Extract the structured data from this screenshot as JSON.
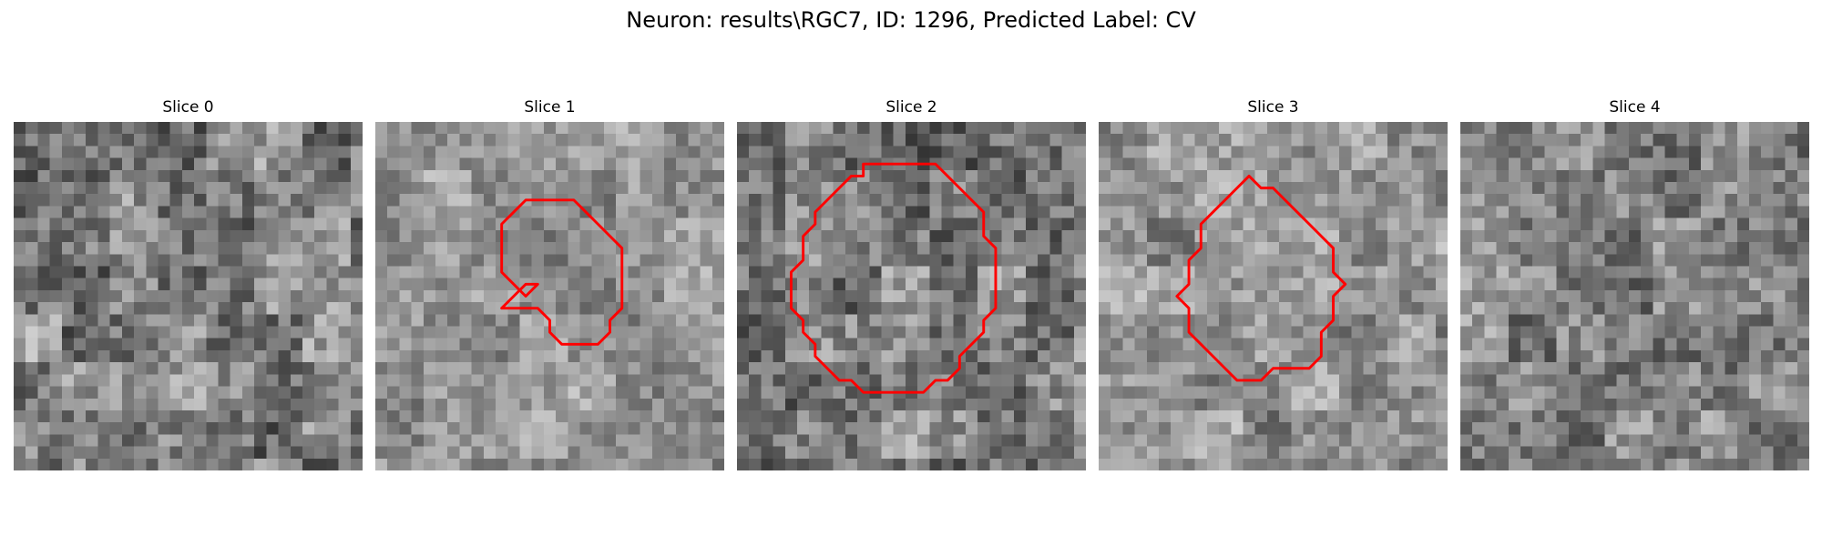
{
  "figure": {
    "suptitle": "Neuron: results\\RGC7, ID: 1296, Predicted Label: CV"
  },
  "panels": [
    {
      "title": "Slice 0",
      "mean": 128,
      "contrast": 58,
      "seed": 11,
      "contour": []
    },
    {
      "title": "Slice 1",
      "mean": 150,
      "contrast": 40,
      "seed": 23,
      "contour": [
        [
          12.5,
          6.5
        ],
        [
          11.5,
          7.5
        ],
        [
          10.5,
          8.5
        ],
        [
          10.5,
          12.5
        ],
        [
          11.5,
          13.5
        ],
        [
          12.5,
          14.5
        ],
        [
          13.5,
          13.5
        ],
        [
          12.5,
          13.5
        ],
        [
          11.5,
          14.5
        ],
        [
          10.5,
          15.5
        ],
        [
          11.5,
          15.5
        ],
        [
          13.5,
          15.5
        ],
        [
          14.5,
          16.5
        ],
        [
          14.5,
          17.5
        ],
        [
          15.5,
          18.5
        ],
        [
          18.5,
          18.5
        ],
        [
          19.5,
          17.5
        ],
        [
          19.5,
          16.5
        ],
        [
          20.5,
          15.5
        ],
        [
          20.5,
          10.5
        ],
        [
          19.5,
          9.5
        ],
        [
          18.5,
          8.5
        ],
        [
          17.5,
          7.5
        ],
        [
          16.5,
          6.5
        ],
        [
          13.5,
          6.5
        ]
      ]
    },
    {
      "title": "Slice 2",
      "mean": 125,
      "contrast": 55,
      "seed": 37,
      "contour": [
        [
          10.5,
          4.5
        ],
        [
          9.5,
          4.5
        ],
        [
          8.5,
          5.5
        ],
        [
          7.5,
          6.5
        ],
        [
          6.5,
          7.5
        ],
        [
          6.5,
          8.5
        ],
        [
          5.5,
          9.5
        ],
        [
          5.5,
          11.5
        ],
        [
          4.5,
          12.5
        ],
        [
          4.5,
          15.5
        ],
        [
          5.5,
          16.5
        ],
        [
          5.5,
          17.5
        ],
        [
          6.5,
          18.5
        ],
        [
          6.5,
          19.5
        ],
        [
          7.5,
          20.5
        ],
        [
          8.5,
          21.5
        ],
        [
          9.5,
          21.5
        ],
        [
          10.5,
          22.5
        ],
        [
          15.5,
          22.5
        ],
        [
          16.5,
          21.5
        ],
        [
          17.5,
          21.5
        ],
        [
          18.5,
          20.5
        ],
        [
          18.5,
          19.5
        ],
        [
          19.5,
          18.5
        ],
        [
          20.5,
          17.5
        ],
        [
          20.5,
          16.5
        ],
        [
          21.5,
          15.5
        ],
        [
          21.5,
          10.5
        ],
        [
          20.5,
          9.5
        ],
        [
          20.5,
          7.5
        ],
        [
          19.5,
          6.5
        ],
        [
          18.5,
          5.5
        ],
        [
          17.5,
          4.5
        ],
        [
          16.5,
          3.5
        ],
        [
          10.5,
          3.5
        ]
      ]
    },
    {
      "title": "Slice 3",
      "mean": 148,
      "contrast": 45,
      "seed": 51,
      "contour": [
        [
          11.5,
          5.5
        ],
        [
          10.5,
          6.5
        ],
        [
          9.5,
          7.5
        ],
        [
          8.5,
          8.5
        ],
        [
          8.5,
          10.5
        ],
        [
          7.5,
          11.5
        ],
        [
          7.5,
          13.5
        ],
        [
          6.5,
          14.5
        ],
        [
          7.5,
          15.5
        ],
        [
          7.5,
          17.5
        ],
        [
          8.5,
          18.5
        ],
        [
          9.5,
          19.5
        ],
        [
          10.5,
          20.5
        ],
        [
          11.5,
          21.5
        ],
        [
          13.5,
          21.5
        ],
        [
          14.5,
          20.5
        ],
        [
          17.5,
          20.5
        ],
        [
          18.5,
          19.5
        ],
        [
          18.5,
          17.5
        ],
        [
          19.5,
          16.5
        ],
        [
          19.5,
          14.5
        ],
        [
          20.5,
          13.5
        ],
        [
          19.5,
          12.5
        ],
        [
          19.5,
          10.5
        ],
        [
          18.5,
          9.5
        ],
        [
          17.5,
          8.5
        ],
        [
          16.5,
          7.5
        ],
        [
          15.5,
          6.5
        ],
        [
          14.5,
          5.5
        ],
        [
          13.5,
          5.5
        ],
        [
          12.5,
          4.5
        ]
      ]
    },
    {
      "title": "Slice 4",
      "mean": 135,
      "contrast": 48,
      "seed": 67,
      "contour": []
    }
  ],
  "colors": {
    "contour": "#ff0000",
    "background": "#ffffff"
  }
}
